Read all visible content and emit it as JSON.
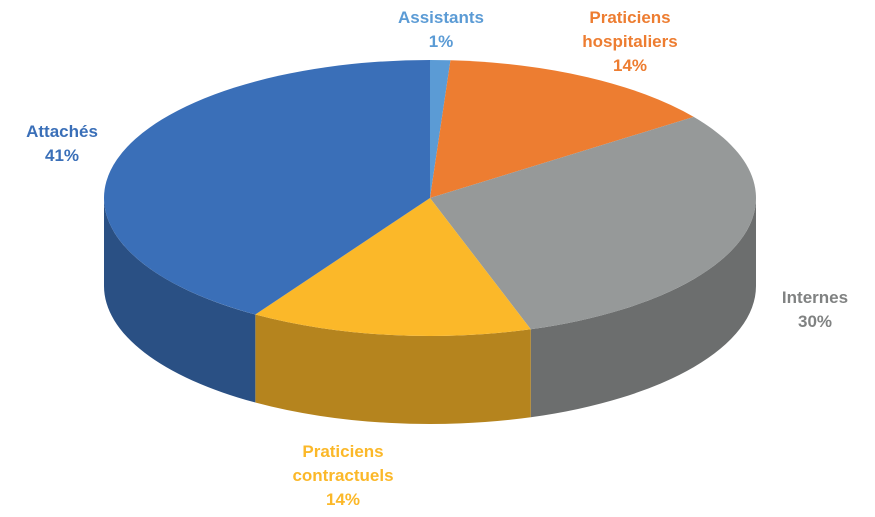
{
  "chart_data": {
    "type": "pie",
    "categories": [
      "Assistants",
      "Praticiens hospitaliers",
      "Internes",
      "Praticiens contractuels",
      "Attachés"
    ],
    "values": [
      1,
      14,
      30,
      14,
      41
    ],
    "value_labels": [
      "1%",
      "14%",
      "30%",
      "14%",
      "41%"
    ],
    "colors": [
      "#5b9bd5",
      "#ed7d31",
      "#969999",
      "#fbb829",
      "#3a6fb8"
    ]
  }
}
